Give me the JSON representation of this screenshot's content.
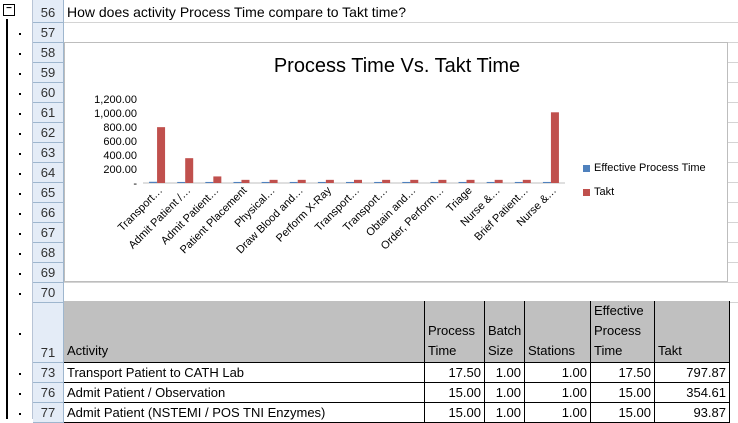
{
  "outline": {
    "collapse_symbol": "−"
  },
  "rows": [
    "56",
    "57",
    "58",
    "59",
    "60",
    "61",
    "62",
    "63",
    "64",
    "65",
    "66",
    "67",
    "68",
    "69",
    "70",
    "71",
    "73",
    "76",
    "77"
  ],
  "question": "How does activity Process Time compare to Takt time?",
  "chart_data": {
    "type": "bar",
    "title": "Process Time Vs. Takt Time",
    "categories": [
      "Transport…",
      "Admit Patient /…",
      "Admit Patient…",
      "Patient Placement",
      "Physical…",
      "Draw Blood and…",
      "Perform X-Ray",
      "Transport…",
      "Transport…",
      "Obtain and…",
      "Order, Perform…",
      "Triage",
      "Nurse &…",
      "Brief Patient…",
      "Nurse &…"
    ],
    "series": [
      {
        "name": "Effective Process Time",
        "color": "#4f81bd",
        "values": [
          17.5,
          15,
          15,
          15,
          15,
          15,
          15,
          15,
          15,
          15,
          15,
          15,
          15,
          15,
          15
        ]
      },
      {
        "name": "Takt",
        "color": "#c0504d",
        "values": [
          797.87,
          354.61,
          93.87,
          45,
          45,
          45,
          45,
          45,
          45,
          45,
          45,
          45,
          45,
          45,
          1010
        ]
      }
    ],
    "yticks": [
      "1,200.00",
      "1,000.00",
      "800.00",
      "600.00",
      "400.00",
      "200.00",
      "-"
    ],
    "ylim": [
      0,
      1200
    ],
    "legend_position": "right",
    "grid": false
  },
  "table": {
    "headers": [
      [
        "Activity"
      ],
      [
        "Process",
        "Time"
      ],
      [
        "Batch",
        "Size"
      ],
      [
        "Stations"
      ],
      [
        "Effective",
        "Process",
        "Time"
      ],
      [
        "Takt"
      ]
    ],
    "rows": [
      [
        "Transport Patient to CATH Lab",
        "17.50",
        "1.00",
        "1.00",
        "17.50",
        "797.87"
      ],
      [
        "Admit Patient / Observation",
        "15.00",
        "1.00",
        "1.00",
        "15.00",
        "354.61"
      ],
      [
        "Admit Patient (NSTEMI / POS TNI Enzymes)",
        "15.00",
        "1.00",
        "1.00",
        "15.00",
        "93.87"
      ]
    ]
  }
}
